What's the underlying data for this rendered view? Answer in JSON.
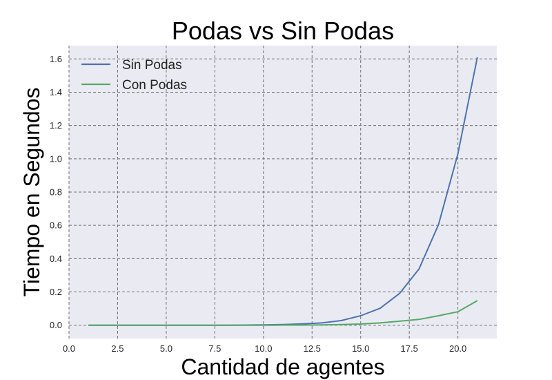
{
  "chart_data": {
    "type": "line",
    "title": "Podas vs Sin Podas",
    "xlabel": "Cantidad de agentes",
    "ylabel": "Tiempo en Segundos",
    "xlim": [
      0,
      22
    ],
    "ylim": [
      -0.08,
      1.68
    ],
    "xticks": [
      0,
      2.5,
      5,
      7.5,
      10,
      12.5,
      15,
      17.5,
      20
    ],
    "xtick_labels": [
      "0.0",
      "2.5",
      "5.0",
      "7.5",
      "10.0",
      "12.5",
      "15.0",
      "17.5",
      "20.0"
    ],
    "yticks": [
      0,
      0.2,
      0.4,
      0.6,
      0.8,
      1.0,
      1.2,
      1.4,
      1.6
    ],
    "ytick_labels": [
      "0.0",
      "0.2",
      "0.4",
      "0.6",
      "0.8",
      "1.0",
      "1.2",
      "1.4",
      "1.6"
    ],
    "grid": true,
    "legend_position": "top-left",
    "background_color": "#eaeaf2",
    "series": [
      {
        "name": "Sin Podas",
        "color": "#4c72b0",
        "x": [
          1,
          2,
          3,
          4,
          5,
          6,
          7,
          8,
          9,
          10,
          11,
          12,
          13,
          14,
          15,
          16,
          17,
          18,
          19,
          20,
          21
        ],
        "y": [
          0,
          0,
          0,
          0,
          0,
          0,
          0,
          0,
          0.001,
          0.002,
          0.004,
          0.008,
          0.014,
          0.028,
          0.057,
          0.102,
          0.191,
          0.338,
          0.604,
          1.03,
          1.61
        ]
      },
      {
        "name": "Con Podas",
        "color": "#55a868",
        "x": [
          1,
          2,
          3,
          4,
          5,
          6,
          7,
          8,
          9,
          10,
          11,
          12,
          13,
          14,
          15,
          16,
          17,
          18,
          19,
          20,
          21
        ],
        "y": [
          0,
          0,
          0,
          0,
          0,
          0,
          0,
          0,
          0,
          0,
          0.001,
          0.001,
          0.002,
          0.004,
          0.007,
          0.014,
          0.024,
          0.035,
          0.057,
          0.081,
          0.148
        ]
      }
    ]
  }
}
